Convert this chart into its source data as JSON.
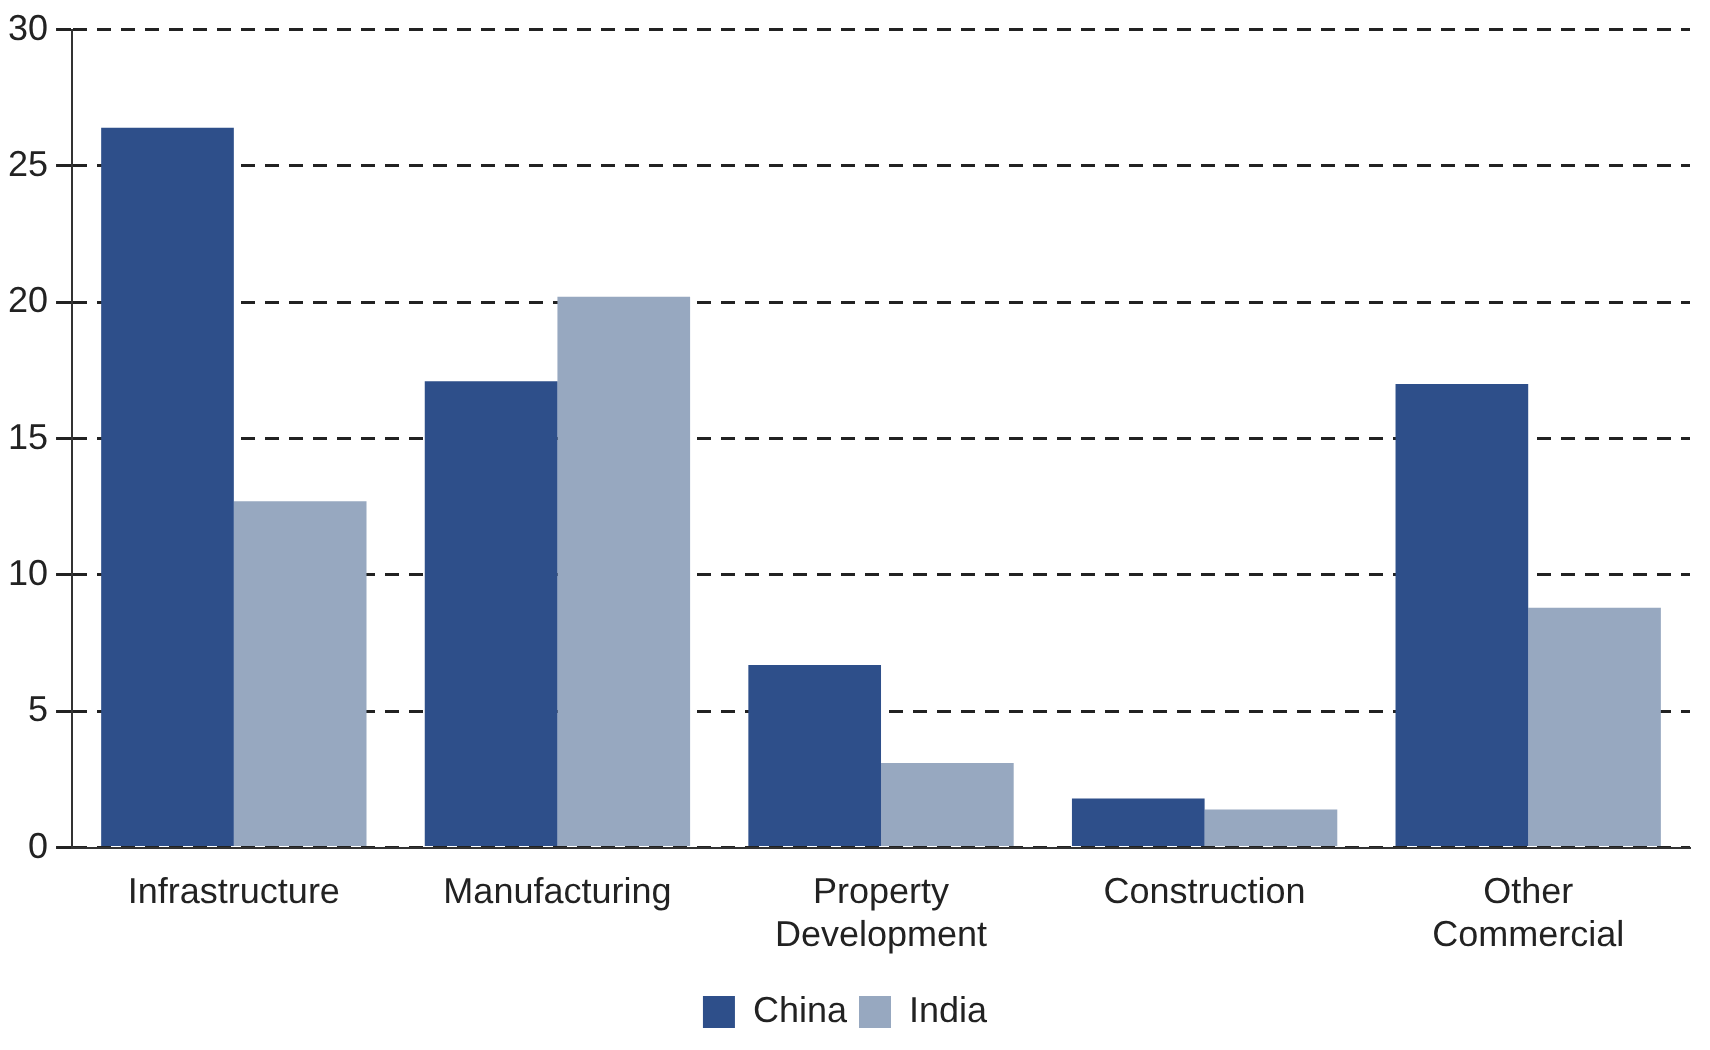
{
  "chart_data": {
    "type": "bar",
    "categories": [
      "Infrastructure",
      "Manufacturing",
      "Property Development",
      "Construction",
      "Other Commercial"
    ],
    "series": [
      {
        "name": "China",
        "color": "#2e4f8a",
        "values": [
          26.4,
          17.1,
          6.7,
          1.8,
          17.0
        ]
      },
      {
        "name": "India",
        "color": "#97a8c0",
        "values": [
          12.7,
          20.2,
          3.1,
          1.4,
          8.8
        ]
      }
    ],
    "ylim": [
      0,
      30
    ],
    "yticks": [
      0,
      5,
      10,
      15,
      20,
      25,
      30
    ],
    "grid": "y",
    "legend": "bottom"
  }
}
